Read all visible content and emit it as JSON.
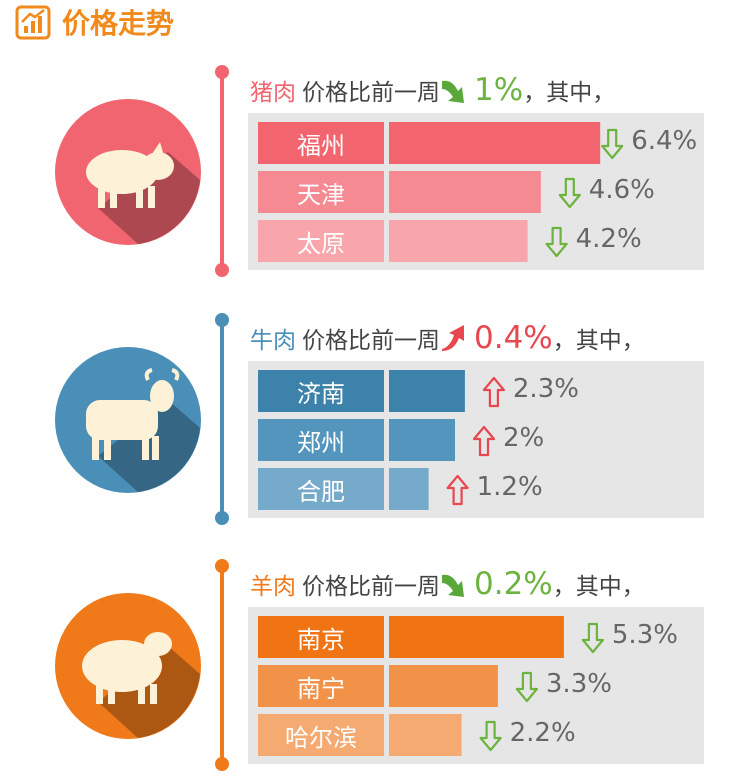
{
  "title": "价格走势",
  "sections": [
    {
      "name": "猪肉",
      "text": "价格比前一周",
      "change": "1%",
      "suffix": "，其中，",
      "trend": "down",
      "color": "#f0656f",
      "categories": [
        "福州",
        "天津",
        "太原"
      ],
      "values": [
        6.4,
        4.6,
        4.2
      ],
      "value_labels": [
        "6.4%",
        "4.6%",
        "4.2%"
      ],
      "trends": [
        "down",
        "down",
        "down"
      ],
      "colors": [
        "#f2656f",
        "#f68a93",
        "#f9a5ac"
      ]
    },
    {
      "name": "牛肉",
      "text": "价格比前一周",
      "change": "0.4%",
      "suffix": "，其中，",
      "trend": "up",
      "color": "#4a8fb8",
      "categories": [
        "济南",
        "郑州",
        "合肥"
      ],
      "values": [
        2.3,
        2,
        1.2
      ],
      "value_labels": [
        "2.3%",
        "2%",
        "1.2%"
      ],
      "trends": [
        "up",
        "up",
        "up"
      ],
      "colors": [
        "#3c82aa",
        "#5495bd",
        "#76aaca"
      ]
    },
    {
      "name": "羊肉",
      "text": "价格比前一周",
      "change": "0.2%",
      "suffix": "，其中，",
      "trend": "down",
      "color": "#f07a1a",
      "categories": [
        "南京",
        "南宁",
        "哈尔滨"
      ],
      "values": [
        5.3,
        3.3,
        2.2
      ],
      "value_labels": [
        "5.3%",
        "3.3%",
        "2.2%"
      ],
      "trends": [
        "down",
        "down",
        "down"
      ],
      "colors": [
        "#f07414",
        "#f29148",
        "#f4aa70"
      ]
    }
  ]
}
